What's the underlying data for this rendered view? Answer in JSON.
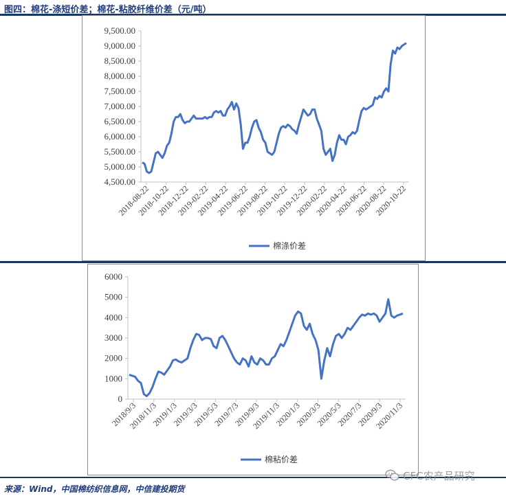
{
  "header": {
    "title": "图四：棉花-涤短价差；棉花-粘胶纤维价差（元/吨）"
  },
  "footer": {
    "source": "来源：Wind，中国棉纺织信息网，中信建投期货",
    "watermark": "CFC农产品研究",
    "watermark_icon": "wechat-icon"
  },
  "colors": {
    "line": "#4472c4",
    "rule": "#17375e",
    "title": "#1f3b7a"
  },
  "chart_data": [
    {
      "type": "line",
      "title": "",
      "xlabel": "",
      "ylabel": "",
      "ylim": [
        4500,
        9500
      ],
      "yticks": [
        "9,500.00",
        "9,000.00",
        "8,500.00",
        "8,000.00",
        "7,500.00",
        "7,000.00",
        "6,500.00",
        "6,000.00",
        "5,500.00",
        "5,000.00",
        "4,500.00"
      ],
      "xticks": [
        "2018-08-22",
        "2018-10-22",
        "2018-12-22",
        "2019-02-22",
        "2019-04-22",
        "2019-06-22",
        "2019-08-22",
        "2019-10-22",
        "2019-12-22",
        "2020-02-22",
        "2020-04-22",
        "2020-06-22",
        "2020-08-22",
        "2020-10-22"
      ],
      "grid": false,
      "legend": "bottom",
      "series": [
        {
          "name": "棉涤价差",
          "values": [
            5150,
            5100,
            4850,
            4800,
            4850,
            5150,
            5450,
            5500,
            5400,
            5300,
            5450,
            5700,
            5800,
            6100,
            6500,
            6650,
            6650,
            6750,
            6550,
            6450,
            6500,
            6500,
            6600,
            6700,
            6600,
            6600,
            6600,
            6600,
            6650,
            6600,
            6650,
            6650,
            6800,
            6850,
            6800,
            6850,
            6700,
            6700,
            6900,
            7000,
            7150,
            6900,
            7100,
            6950,
            6400,
            5600,
            5800,
            5800,
            6000,
            6300,
            6500,
            6550,
            6300,
            6150,
            5900,
            5800,
            5500,
            5450,
            5400,
            5500,
            5800,
            6100,
            6300,
            6350,
            6300,
            6400,
            6350,
            6250,
            6200,
            6100,
            6400,
            6650,
            6900,
            6800,
            6700,
            6750,
            6900,
            6900,
            6600,
            6400,
            6200,
            5600,
            5400,
            5500,
            5600,
            5200,
            5400,
            5800,
            6050,
            5900,
            5900,
            5750,
            6000,
            6050,
            6150,
            6100,
            6200,
            6550,
            6850,
            6950,
            6900,
            6950,
            7000,
            7050,
            7300,
            7250,
            7350,
            7300,
            7500,
            7600,
            7500,
            8400,
            8850,
            8750,
            8950,
            8900,
            9000,
            9050,
            9100
          ]
        }
      ]
    },
    {
      "type": "line",
      "title": "",
      "xlabel": "",
      "ylabel": "",
      "ylim": [
        0,
        6000
      ],
      "yticks": [
        "6000",
        "5000",
        "4000",
        "3000",
        "2000",
        "1000",
        "0"
      ],
      "xticks": [
        "2018/9/3",
        "2018/11/3",
        "2019/1/3",
        "2019/3/3",
        "2019/5/3",
        "2019/7/3",
        "2019/9/3",
        "2019/11/3",
        "2020/1/3",
        "2020/3/3",
        "2020/5/3",
        "2020/7/3",
        "2020/9/3",
        "2020/11/3"
      ],
      "grid": false,
      "legend": "bottom",
      "series": [
        {
          "name": "棉粘价差",
          "values": [
            1200,
            1150,
            1100,
            900,
            800,
            250,
            150,
            300,
            600,
            1000,
            1350,
            1300,
            1200,
            1400,
            1600,
            1900,
            1950,
            1850,
            1800,
            1900,
            2000,
            2500,
            2900,
            3200,
            3150,
            2900,
            3000,
            3000,
            2950,
            2600,
            2500,
            3000,
            3100,
            2900,
            2600,
            2300,
            2000,
            1800,
            1700,
            2000,
            1900,
            1600,
            2100,
            1800,
            1700,
            2000,
            1900,
            1700,
            1700,
            2000,
            2100,
            2400,
            2700,
            2600,
            2900,
            3300,
            3700,
            4100,
            4300,
            4200,
            3600,
            3400,
            3700,
            3200,
            2900,
            2400,
            1000,
            1900,
            2500,
            2100,
            2700,
            3100,
            3200,
            3000,
            3200,
            3500,
            3400,
            3600,
            3800,
            4000,
            4150,
            4100,
            4200,
            4150,
            4200,
            4100,
            3800,
            4000,
            4200,
            4900,
            4100,
            4000,
            4100,
            4150,
            4200
          ]
        }
      ]
    }
  ]
}
